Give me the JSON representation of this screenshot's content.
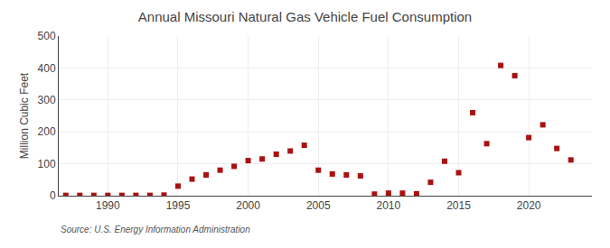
{
  "chart_data": {
    "type": "scatter",
    "title": "Annual Missouri Natural Gas Vehicle Fuel Consumption",
    "ylabel": "Million Cubic Feet",
    "annotations": [
      "Source: U.S. Energy Information Administration"
    ],
    "x": [
      1987,
      1988,
      1989,
      1990,
      1991,
      1992,
      1993,
      1994,
      1995,
      1996,
      1997,
      1998,
      1999,
      2000,
      2001,
      2002,
      2003,
      2004,
      2005,
      2006,
      2007,
      2008,
      2009,
      2010,
      2011,
      2012,
      2013,
      2014,
      2015,
      2016,
      2017,
      2018,
      2019,
      2020,
      2021,
      2022,
      2023
    ],
    "values": [
      1,
      1,
      1,
      1,
      1,
      1,
      1,
      2,
      30,
      52,
      65,
      80,
      92,
      110,
      115,
      130,
      140,
      158,
      80,
      68,
      65,
      62,
      5,
      8,
      8,
      6,
      42,
      108,
      72,
      260,
      163,
      408,
      376,
      182,
      222,
      148,
      112
    ],
    "color": "#aa1111",
    "marker": "square",
    "xlim": [
      1986.5,
      2024.5
    ],
    "xticks": [
      1990,
      1995,
      2000,
      2005,
      2010,
      2015,
      2020
    ],
    "ylim": [
      0,
      500
    ],
    "yticks": [
      0,
      100,
      200,
      300,
      400,
      500
    ],
    "grid": true
  }
}
